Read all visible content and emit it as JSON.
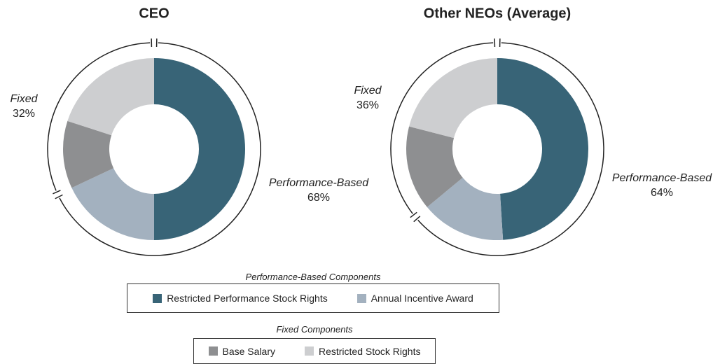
{
  "chart_data": [
    {
      "type": "donut",
      "title": "CEO",
      "categories": [
        "Restricted Performance Stock Rights",
        "Annual Incentive Award",
        "Base Salary",
        "Restricted Stock Rights"
      ],
      "values": [
        50,
        18,
        12,
        20
      ],
      "colors": [
        "#386477",
        "#a3b1bf",
        "#8e8f91",
        "#cdced0"
      ],
      "groups": [
        {
          "name": "Performance-Based",
          "value": 68,
          "value_label": "68%"
        },
        {
          "name": "Fixed",
          "value": 32,
          "value_label": "32%"
        }
      ]
    },
    {
      "type": "donut",
      "title": "Other NEOs (Average)",
      "categories": [
        "Restricted Performance Stock Rights",
        "Annual Incentive Award",
        "Base Salary",
        "Restricted Stock Rights"
      ],
      "values": [
        49,
        15,
        15,
        21
      ],
      "colors": [
        "#386477",
        "#a3b1bf",
        "#8e8f91",
        "#cdced0"
      ],
      "groups": [
        {
          "name": "Performance-Based",
          "value": 64,
          "value_label": "64%"
        },
        {
          "name": "Fixed",
          "value": 36,
          "value_label": "36%"
        }
      ]
    }
  ],
  "legend": [
    {
      "title": "Performance-Based Components",
      "items": [
        {
          "name": "Restricted Performance Stock Rights",
          "color": "#386477"
        },
        {
          "name": "Annual Incentive Award",
          "color": "#a3b1bf"
        }
      ]
    },
    {
      "title": "Fixed Components",
      "items": [
        {
          "name": "Base Salary",
          "color": "#8e8f91"
        },
        {
          "name": "Restricted Stock Rights",
          "color": "#cdced0"
        }
      ]
    }
  ]
}
